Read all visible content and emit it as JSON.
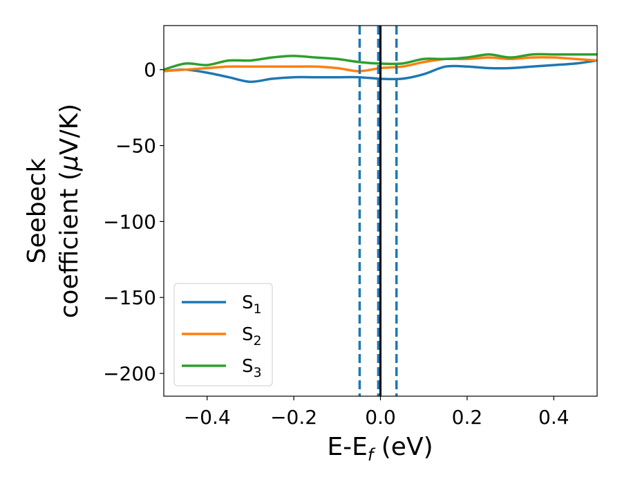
{
  "chart_data": {
    "type": "line",
    "xlabel": {
      "main": "E-E",
      "sub": "f",
      "suffix": " (eV)"
    },
    "ylabel": {
      "line1": "Seebeck",
      "line2": "coefficient  (",
      "mu": "μ",
      "unit": "V/K)"
    },
    "xlim": [
      -0.5,
      0.5
    ],
    "ylim": [
      -215,
      29
    ],
    "xticks": [
      -0.4,
      -0.2,
      0.0,
      0.2,
      0.4
    ],
    "xtick_labels": [
      "−0.4",
      "−0.2",
      "0.0",
      "0.2",
      "0.4"
    ],
    "yticks": [
      0,
      -50,
      -100,
      -150,
      -200
    ],
    "ytick_labels": [
      "0",
      "−50",
      "−100",
      "−150",
      "−200"
    ],
    "grid": false,
    "legend_position": "lower-left",
    "vlines": [
      {
        "x": -0.048,
        "style": "dashed",
        "color": "#1f77b4"
      },
      {
        "x": -0.005,
        "style": "dashed",
        "color": "#1f77b4"
      },
      {
        "x": 0.037,
        "style": "dashed",
        "color": "#1f77b4"
      },
      {
        "x": 0.0,
        "style": "solid",
        "color": "#000000"
      }
    ],
    "series": [
      {
        "name": "S",
        "sub": "1",
        "color": "#1f77b4",
        "x": [
          -0.5,
          -0.45,
          -0.4,
          -0.35,
          -0.3,
          -0.25,
          -0.2,
          -0.15,
          -0.1,
          -0.05,
          0.0,
          0.05,
          0.1,
          0.15,
          0.2,
          0.25,
          0.3,
          0.35,
          0.4,
          0.45,
          0.5
        ],
        "y": [
          -1,
          0,
          -2,
          -5,
          -8,
          -6,
          -5,
          -5,
          -5,
          -5,
          -6,
          -6,
          -3,
          2,
          2,
          1,
          1,
          2,
          3,
          4,
          6
        ]
      },
      {
        "name": "S",
        "sub": "2",
        "color": "#ff7f0e",
        "x": [
          -0.5,
          -0.45,
          -0.4,
          -0.35,
          -0.3,
          -0.25,
          -0.2,
          -0.15,
          -0.1,
          -0.05,
          0.0,
          0.05,
          0.1,
          0.15,
          0.2,
          0.25,
          0.3,
          0.35,
          0.4,
          0.45,
          0.5
        ],
        "y": [
          -1,
          0,
          1,
          2,
          2,
          2,
          2,
          2,
          1,
          -1,
          1,
          2,
          5,
          7,
          7,
          8,
          7,
          8,
          8,
          7,
          6
        ]
      },
      {
        "name": "S",
        "sub": "3",
        "color": "#2ca02c",
        "x": [
          -0.5,
          -0.45,
          -0.4,
          -0.35,
          -0.3,
          -0.25,
          -0.2,
          -0.15,
          -0.1,
          -0.05,
          0.0,
          0.05,
          0.1,
          0.15,
          0.2,
          0.25,
          0.3,
          0.35,
          0.4,
          0.45,
          0.5
        ],
        "y": [
          0,
          4,
          3,
          6,
          6,
          8,
          9,
          8,
          7,
          5,
          4,
          4,
          7,
          7,
          8,
          10,
          8,
          10,
          10,
          10,
          10
        ]
      }
    ]
  }
}
